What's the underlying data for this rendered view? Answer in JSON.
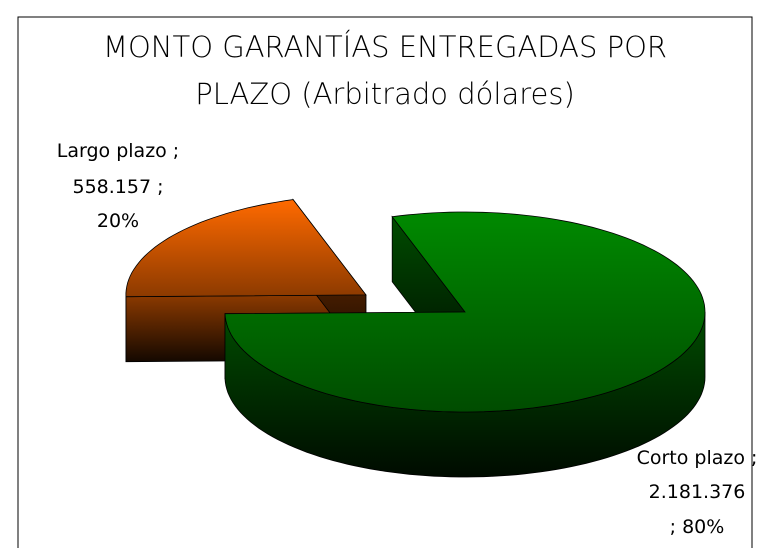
{
  "chart_data": {
    "type": "pie3d",
    "title": [
      "MONTO GARANTÍAS ENTREGADAS POR",
      "PLAZO (Arbitrado dólares)"
    ],
    "categories": [
      "Largo plazo",
      "Corto plazo"
    ],
    "values": [
      558157,
      2181376
    ],
    "value_labels": [
      "558.157",
      "2.181.376"
    ],
    "percents": [
      20,
      80
    ],
    "percent_labels": [
      "20%",
      "80%"
    ],
    "label_separator": ";",
    "colors": [
      "#ff6a00",
      "#008a00"
    ]
  }
}
